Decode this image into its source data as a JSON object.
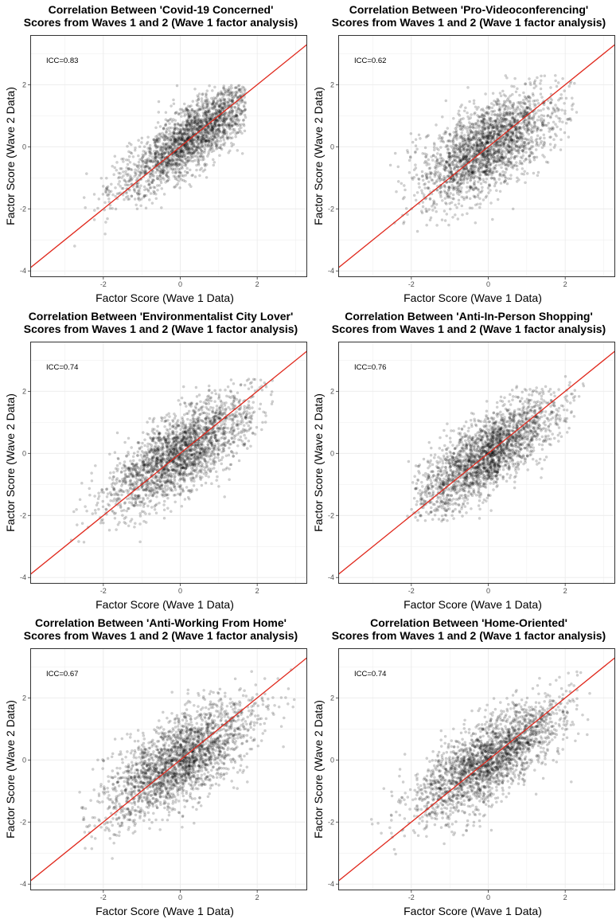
{
  "colors": {
    "points": "#000000",
    "fit_line": "#e0281c",
    "grid": "#ebebeb",
    "panel_border": "#333333"
  },
  "chart_data": [
    {
      "type": "scatter",
      "title": [
        "Correlation Between 'Covid-19 Concerned'",
        "Scores from Waves 1 and 2 (Wave 1 factor analysis)"
      ],
      "xlabel": "Factor Score (Wave 1 Data)",
      "ylabel": "Factor Score (Wave 2 Data)",
      "annotation": "ICC=0.83",
      "xlim": [
        -3.9,
        3.3
      ],
      "ylim": [
        -4.2,
        3.6
      ],
      "xticks": [
        -2,
        0,
        2
      ],
      "yticks": [
        -4,
        -2,
        0,
        2
      ],
      "grid": true,
      "identity_line": true,
      "points": {
        "n": 2300,
        "x_mean": 0.35,
        "x_sd": 0.95,
        "y_mean": 0.35,
        "y_sd": 0.95,
        "corr": 0.83,
        "x_min": -3.4,
        "x_max": 1.7,
        "y_min": -3.6,
        "y_max": 2.0
      }
    },
    {
      "type": "scatter",
      "title": [
        "Correlation Between 'Pro-Videoconferencing'",
        "Scores from Waves 1 and 2 (Wave 1 factor analysis)"
      ],
      "xlabel": "Factor Score (Wave 1 Data)",
      "ylabel": "Factor Score (Wave 2 Data)",
      "annotation": "ICC=0.62",
      "xlim": [
        -3.9,
        3.3
      ],
      "ylim": [
        -4.2,
        3.6
      ],
      "xticks": [
        -2,
        0,
        2
      ],
      "yticks": [
        -4,
        -2,
        0,
        2
      ],
      "grid": true,
      "identity_line": true,
      "points": {
        "n": 2300,
        "x_mean": 0.0,
        "x_sd": 0.9,
        "y_mean": 0.0,
        "y_sd": 0.9,
        "corr": 0.62,
        "x_min": -2.6,
        "x_max": 2.3,
        "y_min": -3.0,
        "y_max": 2.3
      }
    },
    {
      "type": "scatter",
      "title": [
        "Correlation Between 'Environmentalist City Lover'",
        "Scores from Waves 1 and 2 (Wave 1 factor analysis)"
      ],
      "xlabel": "Factor Score (Wave 1 Data)",
      "ylabel": "Factor Score (Wave 2 Data)",
      "annotation": "ICC=0.74",
      "xlim": [
        -3.9,
        3.3
      ],
      "ylim": [
        -4.2,
        3.6
      ],
      "xticks": [
        -2,
        0,
        2
      ],
      "yticks": [
        -4,
        -2,
        0,
        2
      ],
      "grid": true,
      "identity_line": true,
      "points": {
        "n": 2300,
        "x_mean": 0.0,
        "x_sd": 0.95,
        "y_mean": 0.0,
        "y_sd": 0.95,
        "corr": 0.74,
        "x_min": -3.2,
        "x_max": 2.4,
        "y_min": -3.1,
        "y_max": 2.4
      }
    },
    {
      "type": "scatter",
      "title": [
        "Correlation Between 'Anti-In-Person Shopping'",
        "Scores from Waves 1 and 2 (Wave 1 factor analysis)"
      ],
      "xlabel": "Factor Score (Wave 1 Data)",
      "ylabel": "Factor Score (Wave 2 Data)",
      "annotation": "ICC=0.76",
      "xlim": [
        -3.9,
        3.3
      ],
      "ylim": [
        -4.2,
        3.6
      ],
      "xticks": [
        -2,
        0,
        2
      ],
      "yticks": [
        -4,
        -2,
        0,
        2
      ],
      "grid": true,
      "identity_line": true,
      "points": {
        "n": 2300,
        "x_mean": 0.0,
        "x_sd": 0.9,
        "y_mean": 0.0,
        "y_sd": 0.9,
        "corr": 0.76,
        "x_min": -2.1,
        "x_max": 2.5,
        "y_min": -2.2,
        "y_max": 2.5
      }
    },
    {
      "type": "scatter",
      "title": [
        "Correlation Between 'Anti-Working From Home'",
        "Scores from Waves 1 and 2 (Wave 1 factor analysis)"
      ],
      "xlabel": "Factor Score (Wave 1 Data)",
      "ylabel": "Factor Score (Wave 2 Data)",
      "annotation": "ICC=0.67",
      "xlim": [
        -3.9,
        3.3
      ],
      "ylim": [
        -4.2,
        3.6
      ],
      "xticks": [
        -2,
        0,
        2
      ],
      "yticks": [
        -4,
        -2,
        0,
        2
      ],
      "grid": true,
      "identity_line": true,
      "points": {
        "n": 2300,
        "x_mean": 0.0,
        "x_sd": 0.95,
        "y_mean": 0.0,
        "y_sd": 0.95,
        "corr": 0.67,
        "x_min": -2.7,
        "x_max": 3.0,
        "y_min": -3.3,
        "y_max": 3.0
      }
    },
    {
      "type": "scatter",
      "title": [
        "Correlation Between 'Home-Oriented'",
        "Scores from Waves 1 and 2 (Wave 1 factor analysis)"
      ],
      "xlabel": "Factor Score (Wave 1 Data)",
      "ylabel": "Factor Score (Wave 2 Data)",
      "annotation": "ICC=0.74",
      "xlim": [
        -3.9,
        3.3
      ],
      "ylim": [
        -4.2,
        3.6
      ],
      "xticks": [
        -2,
        0,
        2
      ],
      "yticks": [
        -4,
        -2,
        0,
        2
      ],
      "grid": true,
      "identity_line": true,
      "points": {
        "n": 2300,
        "x_mean": 0.0,
        "x_sd": 0.95,
        "y_mean": 0.0,
        "y_sd": 0.95,
        "corr": 0.74,
        "x_min": -3.6,
        "x_max": 2.8,
        "y_min": -3.6,
        "y_max": 2.9
      }
    }
  ]
}
